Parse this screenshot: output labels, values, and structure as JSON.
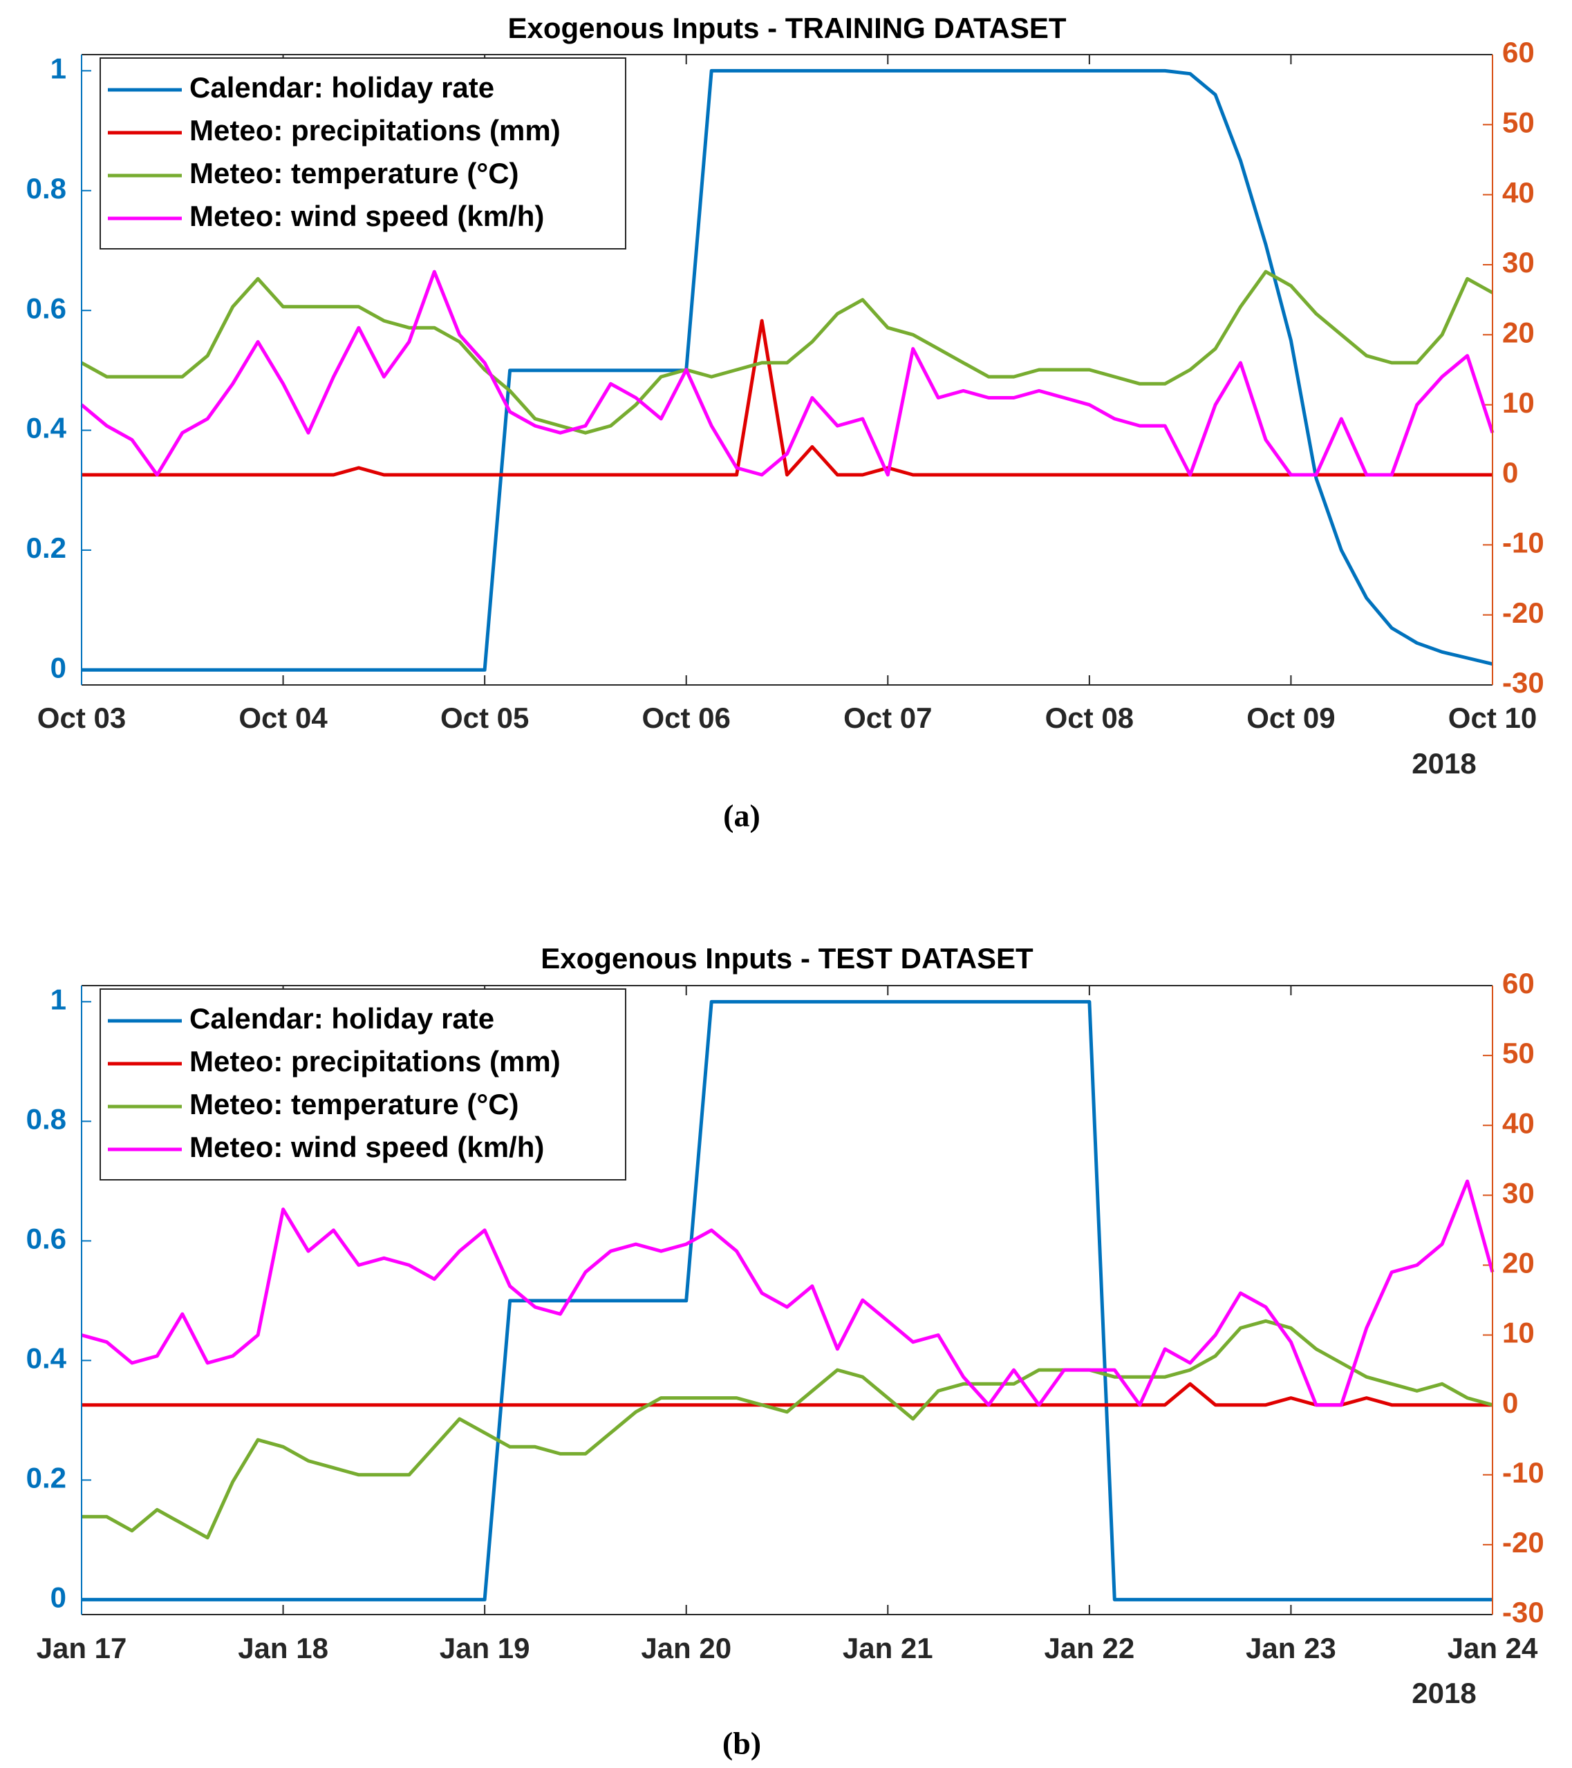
{
  "chart_data": [
    {
      "type": "line",
      "title": "Exogenous Inputs - TRAINING DATASET",
      "caption": "(a)",
      "annotation": "2018",
      "legend": "upper left",
      "x": [
        0,
        0.125,
        0.25,
        0.375,
        0.5,
        0.625,
        0.75,
        0.875,
        1,
        1.125,
        1.25,
        1.375,
        1.5,
        1.625,
        1.75,
        1.875,
        2,
        2.125,
        2.25,
        2.375,
        2.5,
        2.625,
        2.75,
        2.875,
        3,
        3.125,
        3.25,
        3.375,
        3.5,
        3.625,
        3.75,
        3.875,
        4,
        4.125,
        4.25,
        4.375,
        4.5,
        4.625,
        4.75,
        4.875,
        5,
        5.125,
        5.25,
        5.375,
        5.5,
        5.625,
        5.75,
        5.875,
        6,
        6.125,
        6.25,
        6.375,
        6.5,
        6.625,
        6.75,
        6.875,
        7
      ],
      "xlim": [
        0,
        7
      ],
      "xticks": [
        {
          "value": 0,
          "label": "Oct 03"
        },
        {
          "value": 1,
          "label": "Oct 04"
        },
        {
          "value": 2,
          "label": "Oct 05"
        },
        {
          "value": 3,
          "label": "Oct 06"
        },
        {
          "value": 4,
          "label": "Oct 07"
        },
        {
          "value": 5,
          "label": "Oct 08"
        },
        {
          "value": 6,
          "label": "Oct 09"
        },
        {
          "value": 7,
          "label": "Oct 10"
        }
      ],
      "ylim": [
        -0.025,
        1.027
      ],
      "yticks": [
        0,
        0.2,
        0.4,
        0.6,
        0.8,
        1
      ],
      "ycolor": "#0072BD",
      "y2lim": [
        -30,
        60
      ],
      "y2ticks": [
        -30,
        -20,
        -10,
        0,
        10,
        20,
        30,
        40,
        50,
        60
      ],
      "y2color": "#D95319",
      "series": [
        {
          "name": "Calendar: holiday rate",
          "color": "#0072BD",
          "axis": "y",
          "values": [
            0,
            0,
            0,
            0,
            0,
            0,
            0,
            0,
            0,
            0,
            0,
            0,
            0,
            0,
            0,
            0,
            0,
            0.5,
            0.5,
            0.5,
            0.5,
            0.5,
            0.5,
            0.5,
            0.5,
            1,
            1,
            1,
            1,
            1,
            1,
            1,
            1,
            1,
            1,
            1,
            1,
            1,
            1,
            1,
            1,
            1,
            1,
            1,
            0.995,
            0.96,
            0.85,
            0.71,
            0.55,
            0.32,
            0.2,
            0.12,
            0.07,
            0.045,
            0.03,
            0.02,
            0.01
          ]
        },
        {
          "name": "Meteo: precipitations (mm)",
          "color": "#E00000",
          "axis": "y2",
          "values": [
            0,
            0,
            0,
            0,
            0,
            0,
            0,
            0,
            0,
            0,
            0,
            1,
            0,
            0,
            0,
            0,
            0,
            0,
            0,
            0,
            0,
            0,
            0,
            0,
            0,
            0,
            0,
            22,
            0,
            4,
            0,
            0,
            1,
            0,
            0,
            0,
            0,
            0,
            0,
            0,
            0,
            0,
            0,
            0,
            0,
            0,
            0,
            0,
            0,
            0,
            0,
            0,
            0,
            0,
            0,
            0,
            0
          ]
        },
        {
          "name": "Meteo: temperature (°C)",
          "color": "#77AC30",
          "axis": "y2",
          "values": [
            16,
            14,
            14,
            14,
            14,
            17,
            24,
            28,
            24,
            24,
            24,
            24,
            22,
            21,
            21,
            19,
            15,
            12,
            8,
            7,
            6,
            7,
            10,
            14,
            15,
            14,
            15,
            16,
            16,
            19,
            23,
            25,
            21,
            20,
            18,
            16,
            14,
            14,
            15,
            15,
            15,
            14,
            13,
            13,
            15,
            18,
            24,
            29,
            27,
            23,
            20,
            17,
            16,
            16,
            20,
            28,
            26
          ]
        },
        {
          "name": "Meteo: wind speed (km/h)",
          "color": "#FF00FF",
          "axis": "y2",
          "values": [
            10,
            7,
            5,
            0,
            6,
            8,
            13,
            19,
            13,
            6,
            14,
            21,
            14,
            19,
            29,
            20,
            16,
            9,
            7,
            6,
            7,
            13,
            11,
            8,
            15,
            7,
            1,
            0,
            3,
            11,
            7,
            8,
            0,
            18,
            11,
            12,
            11,
            11,
            12,
            11,
            10,
            8,
            7,
            7,
            0,
            10,
            16,
            5,
            0,
            0,
            8,
            0,
            0,
            10,
            14,
            17,
            6
          ]
        }
      ]
    },
    {
      "type": "line",
      "title": "Exogenous Inputs - TEST DATASET",
      "caption": "(b)",
      "annotation": "2018",
      "legend": "upper left",
      "x": [
        0,
        0.125,
        0.25,
        0.375,
        0.5,
        0.625,
        0.75,
        0.875,
        1,
        1.125,
        1.25,
        1.375,
        1.5,
        1.625,
        1.75,
        1.875,
        2,
        2.125,
        2.25,
        2.375,
        2.5,
        2.625,
        2.75,
        2.875,
        3,
        3.125,
        3.25,
        3.375,
        3.5,
        3.625,
        3.75,
        3.875,
        4,
        4.125,
        4.25,
        4.375,
        4.5,
        4.625,
        4.75,
        4.875,
        5,
        5.125,
        5.25,
        5.375,
        5.5,
        5.625,
        5.75,
        5.875,
        6,
        6.125,
        6.25,
        6.375,
        6.5,
        6.625,
        6.75,
        6.875,
        7
      ],
      "xlim": [
        0,
        7
      ],
      "xticks": [
        {
          "value": 0,
          "label": "Jan 17"
        },
        {
          "value": 1,
          "label": "Jan 18"
        },
        {
          "value": 2,
          "label": "Jan 19"
        },
        {
          "value": 3,
          "label": "Jan 20"
        },
        {
          "value": 4,
          "label": "Jan 21"
        },
        {
          "value": 5,
          "label": "Jan 22"
        },
        {
          "value": 6,
          "label": "Jan 23"
        },
        {
          "value": 7,
          "label": "Jan 24"
        }
      ],
      "ylim": [
        -0.025,
        1.027
      ],
      "yticks": [
        0,
        0.2,
        0.4,
        0.6,
        0.8,
        1
      ],
      "ycolor": "#0072BD",
      "y2lim": [
        -30,
        60
      ],
      "y2ticks": [
        -30,
        -20,
        -10,
        0,
        10,
        20,
        30,
        40,
        50,
        60
      ],
      "y2color": "#D95319",
      "series": [
        {
          "name": "Calendar: holiday rate",
          "color": "#0072BD",
          "axis": "y",
          "values": [
            0,
            0,
            0,
            0,
            0,
            0,
            0,
            0,
            0,
            0,
            0,
            0,
            0,
            0,
            0,
            0,
            0,
            0.5,
            0.5,
            0.5,
            0.5,
            0.5,
            0.5,
            0.5,
            0.5,
            1,
            1,
            1,
            1,
            1,
            1,
            1,
            1,
            1,
            1,
            1,
            1,
            1,
            1,
            1,
            1,
            0,
            0,
            0,
            0,
            0,
            0,
            0,
            0,
            0,
            0,
            0,
            0,
            0,
            0,
            0,
            0
          ]
        },
        {
          "name": "Meteo: precipitations (mm)",
          "color": "#E00000",
          "axis": "y2",
          "values": [
            0,
            0,
            0,
            0,
            0,
            0,
            0,
            0,
            0,
            0,
            0,
            0,
            0,
            0,
            0,
            0,
            0,
            0,
            0,
            0,
            0,
            0,
            0,
            0,
            0,
            0,
            0,
            0,
            0,
            0,
            0,
            0,
            0,
            0,
            0,
            0,
            0,
            0,
            0,
            0,
            0,
            0,
            0,
            0,
            3,
            0,
            0,
            0,
            1,
            0,
            0,
            1,
            0,
            0,
            0,
            0,
            0
          ]
        },
        {
          "name": "Meteo: temperature (°C)",
          "color": "#77AC30",
          "axis": "y2",
          "values": [
            -16,
            -16,
            -18,
            -15,
            -17,
            -19,
            -11,
            -5,
            -6,
            -8,
            -9,
            -10,
            -10,
            -10,
            -6,
            -2,
            -4,
            -6,
            -6,
            -7,
            -7,
            -4,
            -1,
            1,
            1,
            1,
            1,
            0,
            -1,
            2,
            5,
            4,
            1,
            -2,
            2,
            3,
            3,
            3,
            5,
            5,
            5,
            4,
            4,
            4,
            5,
            7,
            11,
            12,
            11,
            8,
            6,
            4,
            3,
            2,
            3,
            1,
            0
          ]
        },
        {
          "name": "Meteo: wind speed (km/h)",
          "color": "#FF00FF",
          "axis": "y2",
          "values": [
            10,
            9,
            6,
            7,
            13,
            6,
            7,
            10,
            28,
            22,
            25,
            20,
            21,
            20,
            18,
            22,
            25,
            17,
            14,
            13,
            19,
            22,
            23,
            22,
            23,
            25,
            22,
            16,
            14,
            17,
            8,
            15,
            12,
            9,
            10,
            4,
            0,
            5,
            0,
            5,
            5,
            5,
            0,
            8,
            6,
            10,
            16,
            14,
            9,
            0,
            0,
            11,
            19,
            20,
            23,
            32,
            19
          ]
        }
      ]
    }
  ]
}
